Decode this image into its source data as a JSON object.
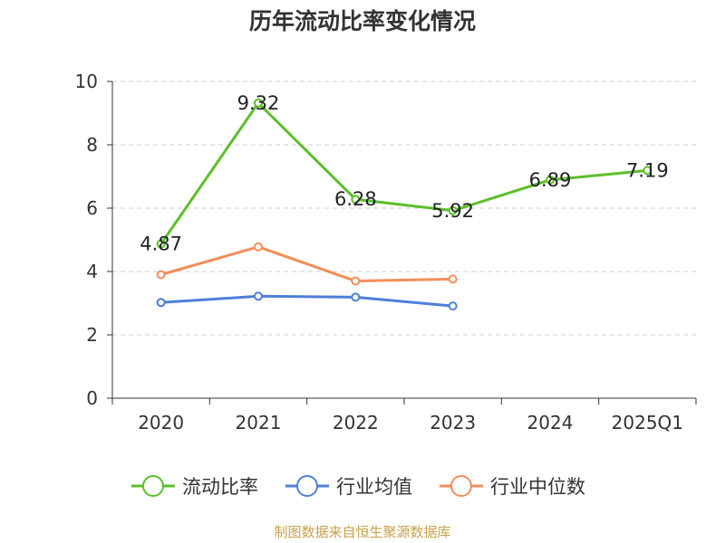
{
  "chart_data": {
    "type": "line",
    "title": "历年流动比率变化情况",
    "categories": [
      "2020",
      "2021",
      "2022",
      "2023",
      "2024",
      "2025Q1"
    ],
    "ylim": [
      0,
      10
    ],
    "yticks": [
      0,
      2,
      4,
      6,
      8,
      10
    ],
    "grid": true,
    "legend": "bottom",
    "series": [
      {
        "name": "流动比率",
        "color": "#5cbf2a",
        "values": [
          4.87,
          9.32,
          6.28,
          5.92,
          6.89,
          7.19
        ],
        "labels": [
          "4.87",
          "9.32",
          "6.28",
          "5.92",
          "6.89",
          "7.19"
        ]
      },
      {
        "name": "行业均值",
        "color": "#4e7fd8",
        "values": [
          3.02,
          3.22,
          3.19,
          2.91,
          null,
          null
        ]
      },
      {
        "name": "行业中位数",
        "color": "#f28e5a",
        "values": [
          3.9,
          4.78,
          3.7,
          3.76,
          null,
          null
        ]
      }
    ]
  },
  "source": "制图数据来自恒生聚源数据库"
}
